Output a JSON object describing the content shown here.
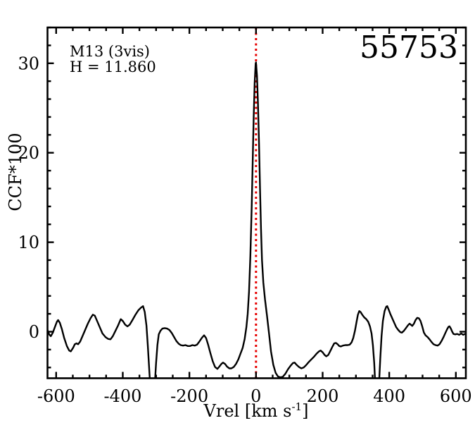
{
  "colors": {
    "background": "#ffffff",
    "axis": "#000000",
    "curve": "#000000",
    "reference_line": "#e60000",
    "text": "#000000"
  },
  "chart_data": {
    "type": "line",
    "title": "55753",
    "annotations": [
      "M13 (3vis)",
      "H = 11.860"
    ],
    "ylabel": "CCF*100",
    "xlabel": {
      "pre": "Vrel [km s",
      "sup": "-1",
      "post": "]"
    },
    "xlim": [
      -626,
      630
    ],
    "ylim": [
      -5.2,
      34
    ],
    "x_major_ticks": [
      -600,
      -400,
      -200,
      0,
      200,
      400,
      600
    ],
    "x_tick_labels": [
      "-600",
      "-400",
      "-200",
      "0",
      "200",
      "400",
      "600"
    ],
    "x_minor_step": 50,
    "y_major_ticks": [
      0,
      10,
      20,
      30
    ],
    "y_tick_labels": [
      "0",
      "10",
      "20",
      "30"
    ],
    "y_minor_step": 2,
    "grid": "off",
    "legend": "none",
    "reference_line": {
      "x": 0,
      "style": "dotted",
      "color": "#e60000"
    },
    "series": [
      {
        "name": "cross-correlation-function",
        "color": "#000000",
        "points": [
          [
            -626,
            0.2
          ],
          [
            -621,
            -0.3
          ],
          [
            -616,
            -0.5
          ],
          [
            -610,
            -0.1
          ],
          [
            -604,
            0.5
          ],
          [
            -598,
            1.1
          ],
          [
            -594,
            1.3
          ],
          [
            -589,
            1.0
          ],
          [
            -583,
            0.3
          ],
          [
            -576,
            -0.7
          ],
          [
            -568,
            -1.6
          ],
          [
            -561,
            -2.1
          ],
          [
            -556,
            -2.2
          ],
          [
            -549,
            -1.8
          ],
          [
            -544,
            -1.4
          ],
          [
            -539,
            -1.3
          ],
          [
            -534,
            -1.4
          ],
          [
            -528,
            -1.1
          ],
          [
            -521,
            -0.5
          ],
          [
            -513,
            0.2
          ],
          [
            -505,
            0.9
          ],
          [
            -497,
            1.5
          ],
          [
            -490,
            1.9
          ],
          [
            -484,
            1.8
          ],
          [
            -477,
            1.2
          ],
          [
            -469,
            0.5
          ],
          [
            -461,
            -0.2
          ],
          [
            -452,
            -0.6
          ],
          [
            -444,
            -0.8
          ],
          [
            -437,
            -0.85
          ],
          [
            -430,
            -0.5
          ],
          [
            -422,
            0.1
          ],
          [
            -414,
            0.7
          ],
          [
            -406,
            1.4
          ],
          [
            -400,
            1.2
          ],
          [
            -393,
            0.8
          ],
          [
            -386,
            0.6
          ],
          [
            -379,
            0.8
          ],
          [
            -371,
            1.3
          ],
          [
            -362,
            1.9
          ],
          [
            -353,
            2.4
          ],
          [
            -345,
            2.7
          ],
          [
            -339,
            2.85
          ],
          [
            -334,
            2.2
          ],
          [
            -329,
            0.7
          ],
          [
            -325,
            -1.5
          ],
          [
            -321,
            -4.0
          ],
          [
            -317,
            -6.5
          ],
          [
            -313,
            -8.0
          ],
          [
            -308,
            -8.0
          ],
          [
            -304,
            -6.0
          ],
          [
            -300,
            -3.5
          ],
          [
            -296,
            -1.5
          ],
          [
            -292,
            -0.3
          ],
          [
            -287,
            0.1
          ],
          [
            -281,
            0.35
          ],
          [
            -274,
            0.4
          ],
          [
            -267,
            0.35
          ],
          [
            -260,
            0.2
          ],
          [
            -253,
            -0.15
          ],
          [
            -246,
            -0.6
          ],
          [
            -239,
            -1.05
          ],
          [
            -232,
            -1.35
          ],
          [
            -226,
            -1.5
          ],
          [
            -219,
            -1.55
          ],
          [
            -212,
            -1.5
          ],
          [
            -205,
            -1.6
          ],
          [
            -198,
            -1.6
          ],
          [
            -191,
            -1.5
          ],
          [
            -184,
            -1.55
          ],
          [
            -177,
            -1.45
          ],
          [
            -170,
            -1.1
          ],
          [
            -163,
            -0.7
          ],
          [
            -156,
            -0.4
          ],
          [
            -150,
            -0.7
          ],
          [
            -144,
            -1.4
          ],
          [
            -137,
            -2.4
          ],
          [
            -130,
            -3.3
          ],
          [
            -123,
            -3.95
          ],
          [
            -116,
            -4.15
          ],
          [
            -110,
            -3.9
          ],
          [
            -104,
            -3.6
          ],
          [
            -99,
            -3.45
          ],
          [
            -93,
            -3.6
          ],
          [
            -87,
            -3.9
          ],
          [
            -80,
            -4.1
          ],
          [
            -74,
            -4.1
          ],
          [
            -67,
            -3.95
          ],
          [
            -60,
            -3.6
          ],
          [
            -53,
            -3.1
          ],
          [
            -46,
            -2.4
          ],
          [
            -40,
            -1.8
          ],
          [
            -34,
            -0.8
          ],
          [
            -29,
            0.5
          ],
          [
            -25,
            2.0
          ],
          [
            -21,
            4.5
          ],
          [
            -17,
            8.5
          ],
          [
            -13,
            14.0
          ],
          [
            -10,
            19.0
          ],
          [
            -7,
            24.0
          ],
          [
            -4,
            27.8
          ],
          [
            -1,
            30.0
          ],
          [
            0,
            30.1
          ],
          [
            3,
            28.6
          ],
          [
            6,
            25.5
          ],
          [
            9,
            21.0
          ],
          [
            12,
            16.0
          ],
          [
            15,
            11.5
          ],
          [
            18,
            8.0
          ],
          [
            22,
            5.5
          ],
          [
            27,
            3.6
          ],
          [
            33,
            1.8
          ],
          [
            39,
            -0.2
          ],
          [
            45,
            -2.2
          ],
          [
            52,
            -3.7
          ],
          [
            59,
            -4.6
          ],
          [
            66,
            -5.0
          ],
          [
            73,
            -5.1
          ],
          [
            80,
            -5.05
          ],
          [
            88,
            -4.7
          ],
          [
            96,
            -4.2
          ],
          [
            104,
            -3.8
          ],
          [
            111,
            -3.5
          ],
          [
            116,
            -3.45
          ],
          [
            122,
            -3.7
          ],
          [
            129,
            -3.95
          ],
          [
            136,
            -4.1
          ],
          [
            143,
            -4.0
          ],
          [
            150,
            -3.75
          ],
          [
            158,
            -3.4
          ],
          [
            166,
            -3.1
          ],
          [
            174,
            -2.8
          ],
          [
            182,
            -2.45
          ],
          [
            189,
            -2.2
          ],
          [
            194,
            -2.1
          ],
          [
            200,
            -2.3
          ],
          [
            206,
            -2.6
          ],
          [
            211,
            -2.75
          ],
          [
            217,
            -2.6
          ],
          [
            223,
            -2.15
          ],
          [
            229,
            -1.7
          ],
          [
            235,
            -1.3
          ],
          [
            240,
            -1.25
          ],
          [
            245,
            -1.4
          ],
          [
            250,
            -1.6
          ],
          [
            255,
            -1.65
          ],
          [
            261,
            -1.55
          ],
          [
            268,
            -1.5
          ],
          [
            275,
            -1.5
          ],
          [
            281,
            -1.45
          ],
          [
            287,
            -1.2
          ],
          [
            292,
            -0.7
          ],
          [
            297,
            0.1
          ],
          [
            302,
            1.1
          ],
          [
            306,
            1.9
          ],
          [
            310,
            2.3
          ],
          [
            314,
            2.2
          ],
          [
            319,
            1.9
          ],
          [
            325,
            1.6
          ],
          [
            331,
            1.4
          ],
          [
            337,
            1.1
          ],
          [
            342,
            0.6
          ],
          [
            347,
            -0.2
          ],
          [
            351,
            -1.5
          ],
          [
            355,
            -3.5
          ],
          [
            358,
            -6.0
          ],
          [
            361,
            -8.0
          ],
          [
            365,
            -8.0
          ],
          [
            369,
            -6.0
          ],
          [
            373,
            -3.0
          ],
          [
            377,
            -0.5
          ],
          [
            381,
            1.2
          ],
          [
            386,
            2.3
          ],
          [
            391,
            2.8
          ],
          [
            394,
            2.85
          ],
          [
            398,
            2.5
          ],
          [
            403,
            2.0
          ],
          [
            409,
            1.5
          ],
          [
            415,
            1.0
          ],
          [
            421,
            0.5
          ],
          [
            427,
            0.2
          ],
          [
            433,
            -0.05
          ],
          [
            438,
            -0.1
          ],
          [
            444,
            0.1
          ],
          [
            450,
            0.4
          ],
          [
            456,
            0.7
          ],
          [
            461,
            0.9
          ],
          [
            466,
            0.75
          ],
          [
            469,
            0.65
          ],
          [
            474,
            0.9
          ],
          [
            479,
            1.3
          ],
          [
            484,
            1.55
          ],
          [
            489,
            1.5
          ],
          [
            494,
            1.2
          ],
          [
            499,
            0.6
          ],
          [
            504,
            -0.1
          ],
          [
            509,
            -0.4
          ],
          [
            515,
            -0.6
          ],
          [
            521,
            -0.85
          ],
          [
            527,
            -1.15
          ],
          [
            533,
            -1.4
          ],
          [
            539,
            -1.5
          ],
          [
            545,
            -1.55
          ],
          [
            551,
            -1.4
          ],
          [
            557,
            -1.05
          ],
          [
            563,
            -0.6
          ],
          [
            569,
            -0.1
          ],
          [
            574,
            0.3
          ],
          [
            578,
            0.55
          ],
          [
            581,
            0.6
          ],
          [
            585,
            0.35
          ],
          [
            589,
            0.0
          ],
          [
            593,
            -0.25
          ],
          [
            598,
            -0.3
          ],
          [
            604,
            -0.25
          ],
          [
            610,
            -0.35
          ],
          [
            616,
            -0.2
          ],
          [
            622,
            -0.35
          ],
          [
            627,
            -0.25
          ],
          [
            630,
            -0.3
          ]
        ]
      }
    ]
  }
}
